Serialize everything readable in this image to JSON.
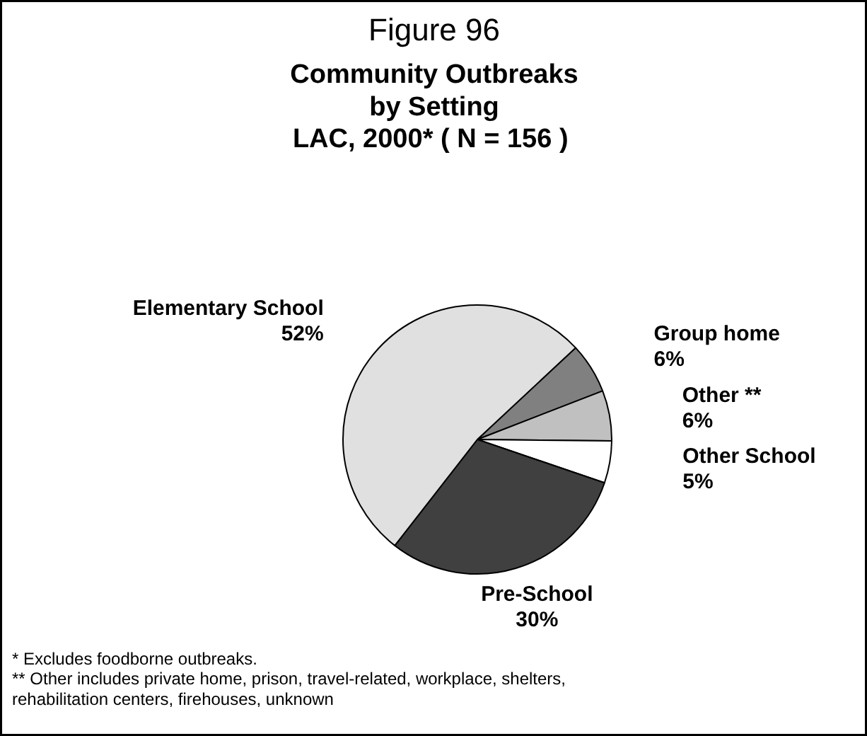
{
  "chart_data": {
    "type": "pie",
    "title": "Figure 96",
    "subtitle": "Community Outbreaks\nby Setting\nLAC, 2000*  ( N = 156 )",
    "categories": [
      "Group home",
      "Other **",
      "Other School",
      "Pre-School",
      "Elementary School"
    ],
    "values": [
      6,
      6,
      5,
      30,
      52
    ],
    "colors": [
      "#808080",
      "#c0c0c0",
      "#ffffff",
      "#404040",
      "#e0e0e0"
    ],
    "value_labels": [
      "6%",
      "6%",
      "5%",
      "30%",
      "52%"
    ],
    "annotations": [
      "* Excludes foodborne outbreaks.",
      "** Other includes private home, prison, travel-related, workplace, shelters,\nrehabilitation centers, firehouses, unknown"
    ]
  }
}
